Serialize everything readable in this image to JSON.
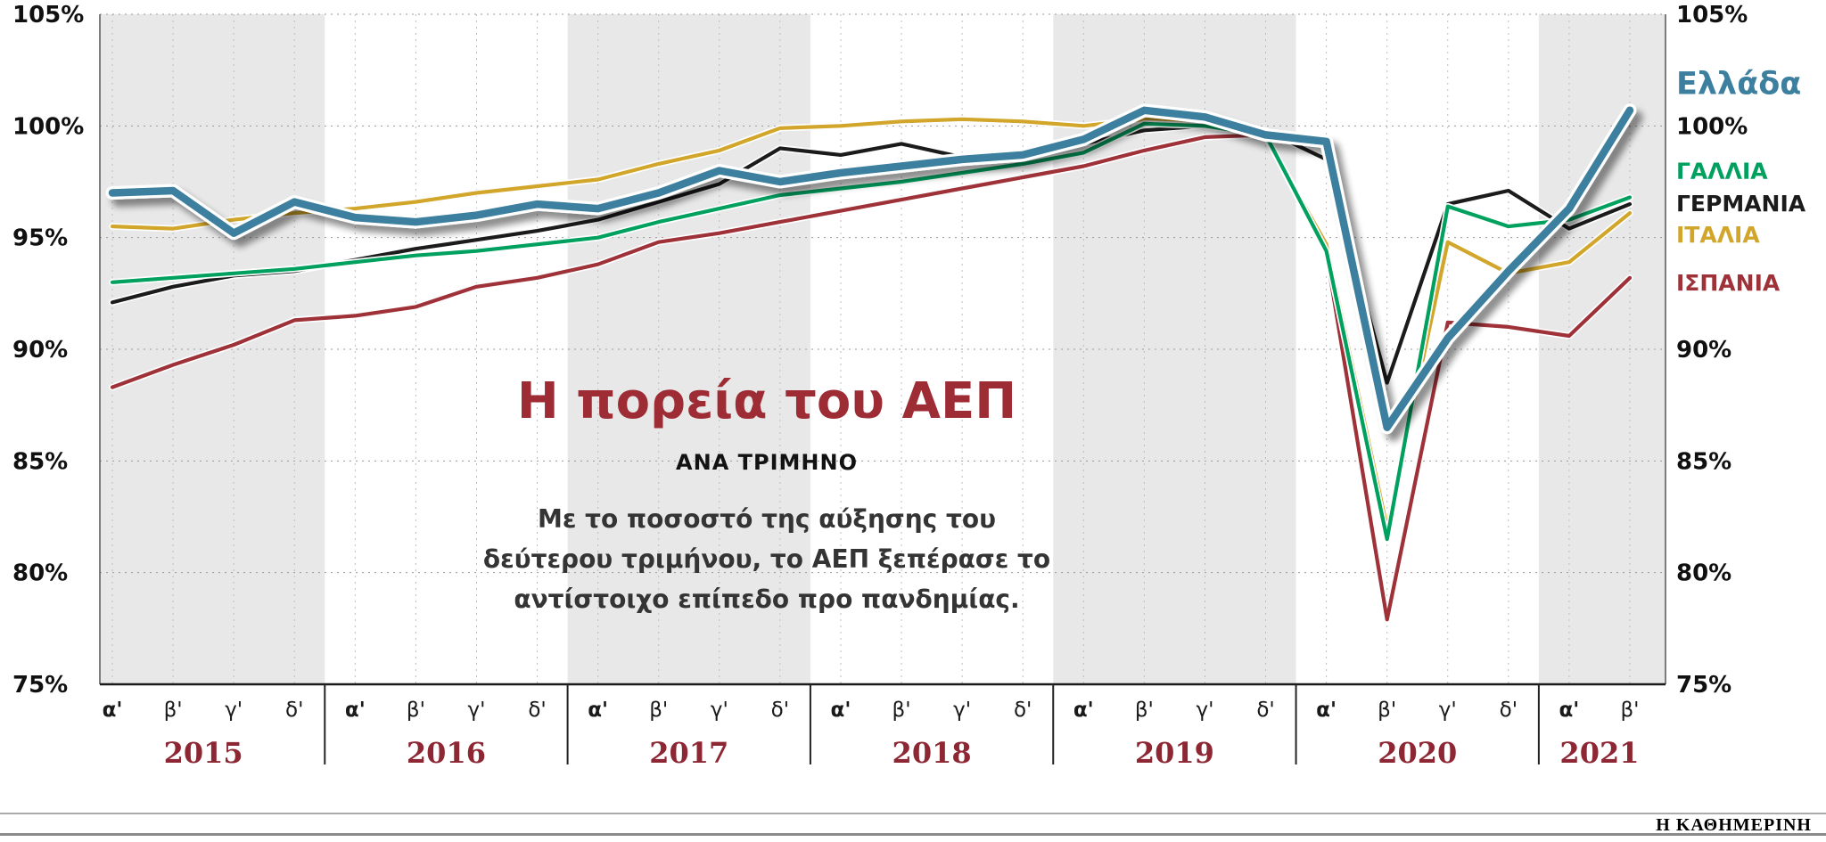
{
  "title": {
    "heading": "Η πορεία του ΑΕΠ",
    "subheading": "ΑΝΑ ΤΡΙΜΗΝΟ",
    "description": "Με το ποσοστό της αύξησης του δεύτερου τριμήνου, το ΑΕΠ ξεπέρασε το αντίστοιχο επίπεδο προ πανδημίας."
  },
  "footer": {
    "brand": "Η ΚΑΘΗΜΕΡΙΝΗ"
  },
  "chart_data": {
    "type": "line",
    "title": "Η πορεία του ΑΕΠ",
    "subtitle": "ΑΝΑ ΤΡΙΜΗΝΟ",
    "note": "Με το ποσοστό της αύξησης του δεύτερου τριμήνου, το ΑΕΠ ξεπέρασε το αντίστοιχο επίπεδο προ πανδημίας.",
    "ylim": [
      75,
      105
    ],
    "grid": "dotted",
    "legend_position": "right",
    "yticks_left": [
      {
        "label": "105%",
        "value": 105
      },
      {
        "label": "100%",
        "value": 100
      },
      {
        "label": "95%",
        "value": 95
      },
      {
        "label": "90%",
        "value": 90
      },
      {
        "label": "85%",
        "value": 85
      },
      {
        "label": "80%",
        "value": 80
      },
      {
        "label": "75%",
        "value": 75
      }
    ],
    "yticks_right": [
      {
        "label": "105%",
        "value": 105
      },
      {
        "label": "100%",
        "value": 100
      },
      {
        "label": "90%",
        "value": 90
      },
      {
        "label": "85%",
        "value": 85
      },
      {
        "label": "80%",
        "value": 80
      },
      {
        "label": "75%",
        "value": 75
      }
    ],
    "shaded_years": [
      "2015",
      "2017",
      "2019",
      "2021"
    ],
    "x_groups": [
      {
        "year": "2015",
        "quarters": [
          "α'",
          "β'",
          "γ'",
          "δ'"
        ]
      },
      {
        "year": "2016",
        "quarters": [
          "α'",
          "β'",
          "γ'",
          "δ'"
        ]
      },
      {
        "year": "2017",
        "quarters": [
          "α'",
          "β'",
          "γ'",
          "δ'"
        ]
      },
      {
        "year": "2018",
        "quarters": [
          "α'",
          "β'",
          "γ'",
          "δ'"
        ]
      },
      {
        "year": "2019",
        "quarters": [
          "α'",
          "β'",
          "γ'",
          "δ'"
        ]
      },
      {
        "year": "2020",
        "quarters": [
          "α'",
          "β'",
          "γ'",
          "δ'"
        ]
      },
      {
        "year": "2021",
        "quarters": [
          "α'",
          "β'"
        ]
      }
    ],
    "series": [
      {
        "name": "Ελλάδα",
        "color": "#3d7f9e",
        "emphasis": true,
        "values": [
          97.0,
          97.1,
          95.2,
          96.6,
          95.9,
          95.7,
          96.0,
          96.5,
          96.3,
          97.0,
          98.0,
          97.5,
          97.9,
          98.2,
          98.5,
          98.7,
          99.4,
          100.7,
          100.4,
          99.6,
          99.3,
          86.5,
          90.5,
          93.5,
          96.3,
          100.7
        ]
      },
      {
        "name": "ΓΑΛΛΙΑ",
        "color": "#00a05f",
        "emphasis": false,
        "values": [
          93.0,
          93.2,
          93.4,
          93.6,
          93.9,
          94.2,
          94.4,
          94.7,
          95.0,
          95.7,
          96.3,
          96.9,
          97.2,
          97.5,
          97.9,
          98.3,
          98.8,
          100.1,
          100.0,
          99.6,
          94.4,
          81.5,
          96.4,
          95.5,
          95.8,
          96.8
        ]
      },
      {
        "name": "ΓΕΡΜΑΝΙΑ",
        "color": "#1b1b1b",
        "emphasis": false,
        "values": [
          92.1,
          92.8,
          93.3,
          93.5,
          94.0,
          94.5,
          94.9,
          95.3,
          95.8,
          96.6,
          97.4,
          99.0,
          98.7,
          99.2,
          98.6,
          98.6,
          99.2,
          99.8,
          100.0,
          99.8,
          98.5,
          88.5,
          96.5,
          97.1,
          95.4,
          96.5
        ]
      },
      {
        "name": "ΙΤΑΛΙΑ",
        "color": "#d2a62a",
        "emphasis": false,
        "values": [
          95.5,
          95.4,
          95.8,
          96.1,
          96.3,
          96.6,
          97.0,
          97.3,
          97.6,
          98.3,
          98.9,
          99.9,
          100.0,
          100.2,
          100.3,
          100.2,
          100.0,
          100.3,
          100.2,
          99.5,
          94.7,
          82.0,
          94.8,
          93.4,
          93.9,
          96.1
        ]
      },
      {
        "name": "ΙΣΠΑΝΙΑ",
        "color": "#9e3238",
        "emphasis": false,
        "values": [
          88.3,
          89.3,
          90.2,
          91.3,
          91.5,
          91.9,
          92.8,
          93.2,
          93.8,
          94.8,
          95.2,
          95.7,
          96.2,
          96.7,
          97.2,
          97.7,
          98.2,
          98.9,
          99.5,
          99.6,
          94.3,
          77.9,
          91.2,
          91.0,
          90.6,
          93.2
        ]
      }
    ]
  }
}
